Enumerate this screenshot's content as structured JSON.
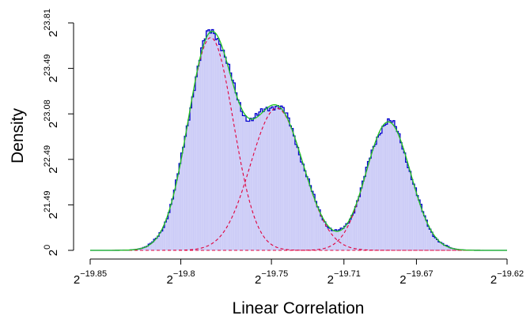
{
  "chart_data": {
    "type": "histogram",
    "xlabel": "Linear Correlation",
    "ylabel": "Density",
    "x_scale": "log2",
    "y_scale": "log2-labelled",
    "xlim": [
      -19.85,
      -19.62
    ],
    "ylim": [
      0,
      23.81
    ],
    "x_ticks": [
      {
        "base": "2",
        "exp": "−19.85",
        "value": -19.85
      },
      {
        "base": "2",
        "exp": "−19.8",
        "value": -19.8
      },
      {
        "base": "2",
        "exp": "−19.75",
        "value": -19.75
      },
      {
        "base": "2",
        "exp": "−19.71",
        "value": -19.71
      },
      {
        "base": "2",
        "exp": "−19.67",
        "value": -19.67
      },
      {
        "base": "2",
        "exp": "−19.62",
        "value": -19.62
      }
    ],
    "y_ticks": [
      {
        "base": "2",
        "exp": "0",
        "value": 0
      },
      {
        "base": "2",
        "exp": "21.49",
        "value": 0.2
      },
      {
        "base": "2",
        "exp": "22.49",
        "value": 0.4
      },
      {
        "base": "2",
        "exp": "23.08",
        "value": 0.6
      },
      {
        "base": "2",
        "exp": "23.49",
        "value": 0.8
      },
      {
        "base": "2",
        "exp": "23.81",
        "value": 1.0
      }
    ],
    "mixture_components": [
      {
        "mean": -19.7835,
        "sd": 0.0125,
        "peak": 0.935
      },
      {
        "mean": -19.747,
        "sd": 0.0145,
        "peak": 0.625
      },
      {
        "mean": -19.6855,
        "sd": 0.0122,
        "peak": 0.565
      }
    ],
    "colors": {
      "histogram_fill": "#d2d2f8",
      "histogram_bar_line": "#c0c0f2",
      "histogram_outline": "#0000cc",
      "mixture_fit": "#22c722",
      "components": "#e0003c"
    }
  }
}
